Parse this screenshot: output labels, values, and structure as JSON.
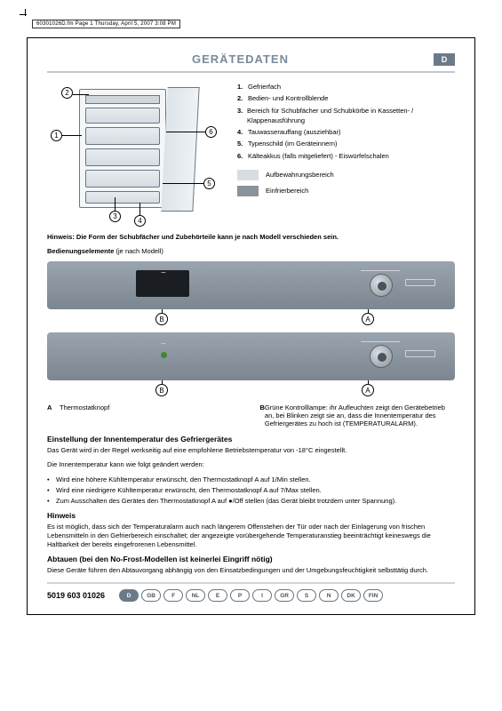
{
  "meta": {
    "header_line": "60301026D.fm  Page 1  Thursday, April 5, 2007  3:08 PM"
  },
  "title": "GERÄTEDATEN",
  "language_flag": "D",
  "diagram": {
    "callouts": {
      "1": "1",
      "2": "2",
      "3": "3",
      "4": "4",
      "5": "5",
      "6": "6"
    },
    "legend": [
      {
        "n": "1.",
        "text": "Gefrierfach"
      },
      {
        "n": "2.",
        "text": "Bedien- und Kontrollblende"
      },
      {
        "n": "3.",
        "text": "Bereich für Schubfächer und Schubkörbe in Kassetten- / Klappenausführung"
      },
      {
        "n": "4.",
        "text": "Tauwasserauffang (ausziehbar)"
      },
      {
        "n": "5.",
        "text": "Typenschild (im Geräteinnern)"
      },
      {
        "n": "6.",
        "text": "Kälteakkus (falls mitgeliefert) - Eiswürfelschalen"
      }
    ],
    "swatches": [
      {
        "color": "#d8dde2",
        "label": "Aufbewahrungsbereich"
      },
      {
        "color": "#8a929a",
        "label": "Einfrierbereich"
      }
    ]
  },
  "hinweis1": "Hinweis: Die Form der Schubfächer und Zubehörteile kann je nach Modell verschieden sein.",
  "subtitle1_bold": "Bedienungselemente",
  "subtitle1_rest": " (je nach Modell)",
  "panel_labels": {
    "A": "A",
    "B": "B"
  },
  "ab": {
    "A": {
      "letter": "A",
      "text": "Thermostatknopf"
    },
    "B": {
      "letter": "B",
      "text": "Grüne Kontrolllampe: ihr Aufleuchten zeigt den Gerätebetrieb an, bei Blinken zeigt sie an, dass die Innentemperatur des Gefriergerätes zu hoch ist (TEMPERATURALARM)."
    }
  },
  "section2": {
    "heading": "Einstellung der Innentemperatur des Gefriergerätes",
    "p1": "Das Gerät wird in der Regel werkseitig auf eine empfohlene Betriebstemperatur von -18°C eingestellt.",
    "p2": "Die Innentemperatur kann wie folgt geändert werden:",
    "bullets": [
      "Wird eine höhere Kühltemperatur erwünscht, den Thermostatknopf A auf 1/Min stellen.",
      "Wird eine niedrigere Kühltemperatur erwünscht, den Thermostatknopf A auf 7/Max stellen.",
      "Zum Ausschalten des Gerätes den Thermostatknopf A auf ●/Off stellen (das Gerät bleibt trotzdem unter Spannung)."
    ]
  },
  "section3": {
    "heading": "Hinweis",
    "p": "Es ist möglich, dass sich der Temperaturalarm auch nach längerem Offenstehen der Tür oder nach der Einlagerung von frischen Lebensmitteln in den Gefrierbereich einschaltet; der angezeigte vorübergehende Temperaturanstieg beeinträchtigt keineswegs die Haltbarkeit der bereits eingefrorenen Lebensmittel."
  },
  "section4": {
    "heading": "Abtauen (bei den No-Frost-Modellen ist keinerlei Eingriff nötig)",
    "p": "Diese Geräte führen den Abtauvorgang abhängig von den Einsatzbedingungen und der Umgebungsfeuchtigkeit selbsttätig durch."
  },
  "footer": {
    "partno": "5019 603 01026",
    "langs": [
      "D",
      "GB",
      "F",
      "NL",
      "E",
      "P",
      "I",
      "GR",
      "S",
      "N",
      "DK",
      "FIN"
    ],
    "active_lang": "D"
  },
  "colors": {
    "title": "#7a8a9a",
    "flag_bg": "#6b7a88",
    "panel_grad_top": "#9aa4ae",
    "panel_grad_bot": "#7c8690",
    "swatch_light": "#d8dde2",
    "swatch_dark": "#8a929a"
  }
}
